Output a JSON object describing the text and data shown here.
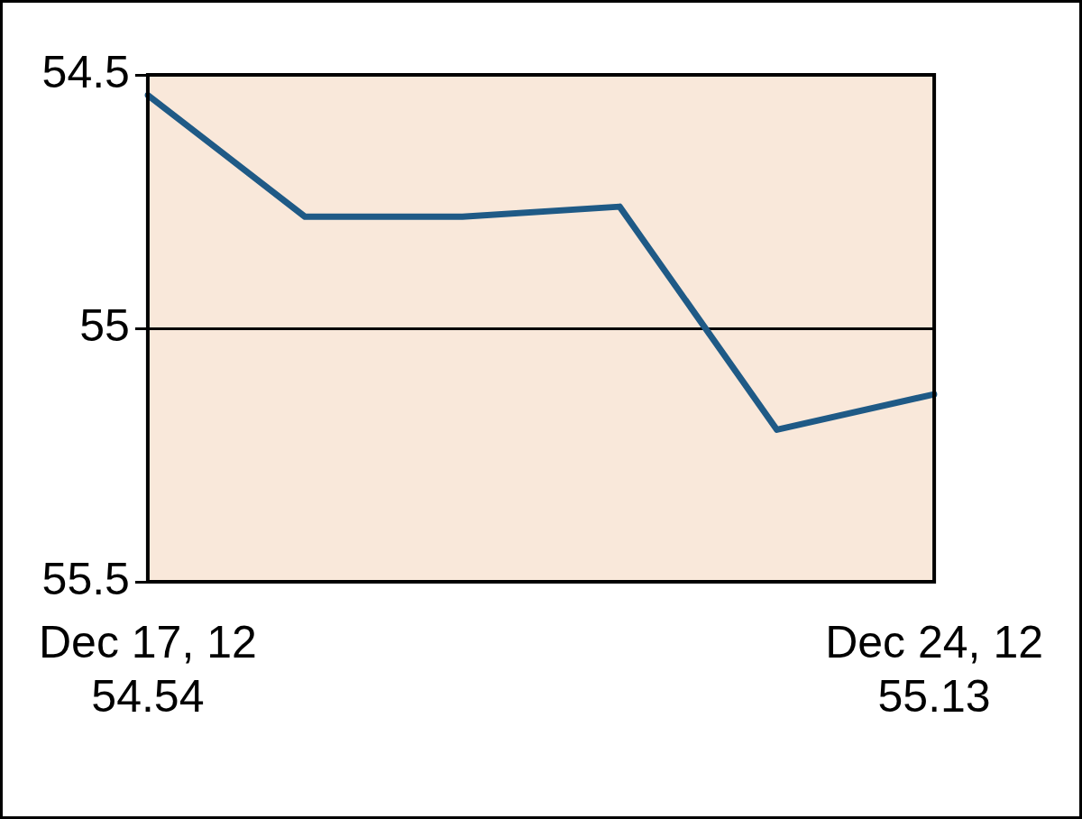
{
  "chart_data": {
    "type": "line",
    "categories": [
      "Dec 17, 12",
      null,
      null,
      null,
      null,
      "Dec 24, 12"
    ],
    "series": [
      {
        "color": "#1f5a86",
        "values": [
          54.54,
          54.78,
          54.78,
          54.76,
          55.2,
          55.13
        ],
        "value_labels": [
          "54.54",
          null,
          null,
          null,
          null,
          "55.13"
        ]
      }
    ],
    "ylim": [
      55.5,
      54.5
    ],
    "yticks": [
      54.5,
      55,
      55.5
    ],
    "grid": "y",
    "legend": false,
    "marker": "none",
    "line_style": "solid"
  }
}
